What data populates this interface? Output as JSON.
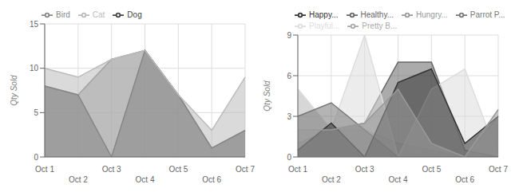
{
  "chart_data": [
    {
      "type": "area",
      "categories": [
        "Oct 1",
        "Oct 2",
        "Oct 3",
        "Oct 4",
        "Oct 5",
        "Oct 6",
        "Oct 7"
      ],
      "series": [
        {
          "name": "Bird",
          "color": "#888888",
          "values": [
            8,
            7,
            11,
            12,
            7,
            1,
            3
          ]
        },
        {
          "name": "Dog",
          "color": "#444444",
          "values": [
            8,
            7,
            0,
            12,
            7,
            1,
            3
          ]
        },
        {
          "name": "Cat",
          "color": "#bbbbbb",
          "values": [
            10,
            9,
            11,
            12,
            7,
            3,
            9
          ]
        }
      ],
      "ylabel": "Qty Sold",
      "ylim": [
        0,
        15
      ],
      "yticks": [
        0,
        5,
        10,
        15
      ],
      "grid": true,
      "legend": "top"
    },
    {
      "type": "area",
      "categories": [
        "Oct 1",
        "Oct 2",
        "Oct 3",
        "Oct 4",
        "Oct 5",
        "Oct 6",
        "Oct 7"
      ],
      "series": [
        {
          "name": "Pretty B...",
          "color": "#aaaaaa",
          "values": [
            5,
            2,
            2,
            1,
            0.5,
            0,
            3
          ]
        },
        {
          "name": "Healthy...",
          "color": "#666666",
          "values": [
            1,
            2,
            2.5,
            7,
            7,
            0.5,
            0
          ]
        },
        {
          "name": "Playful...",
          "color": "#dddddd",
          "values": [
            5,
            2,
            9,
            0,
            5,
            6.5,
            0
          ]
        },
        {
          "name": "Parrot P...",
          "color": "#777777",
          "values": [
            3,
            4,
            2,
            0,
            0,
            0,
            0
          ]
        },
        {
          "name": "Happy...",
          "color": "#333333",
          "values": [
            0.5,
            2.5,
            0,
            5.5,
            6.5,
            1,
            3
          ]
        },
        {
          "name": "Hungry...",
          "color": "#999999",
          "values": [
            2,
            2,
            2.5,
            5,
            1,
            0,
            3.5
          ]
        }
      ],
      "ylabel": "Qty Sold",
      "ylim": [
        0,
        9
      ],
      "yticks": [
        0,
        3,
        6,
        9
      ],
      "grid": true,
      "legend": "top"
    }
  ]
}
